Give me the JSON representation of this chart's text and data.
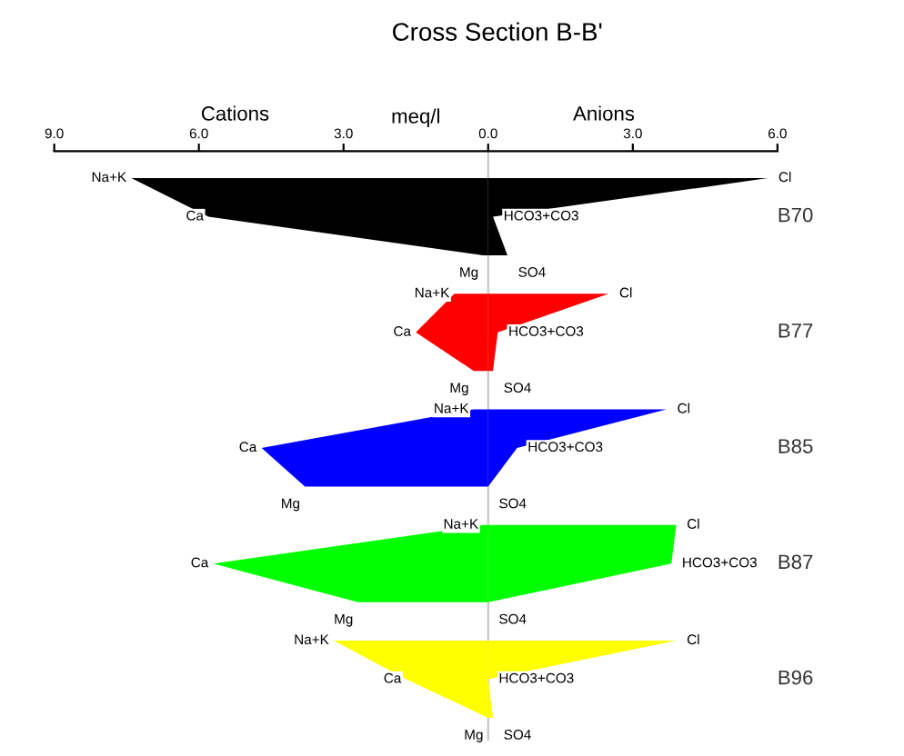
{
  "chart_data": {
    "type": "area",
    "orientation": "horizontal",
    "title": "Cross Section B-B'",
    "xlabel": "meq/l",
    "annotations": [
      "Cations",
      "Anions"
    ],
    "categories": [
      null,
      null,
      null,
      null,
      null,
      null,
      null,
      null,
      null,
      null,
      null,
      null,
      null,
      null,
      null
    ],
    "xlim": [
      -9,
      6
    ],
    "xticks": [
      {
        "value": -9,
        "label": "9.0"
      },
      {
        "value": -6,
        "label": "6.0"
      },
      {
        "value": -3,
        "label": "3.0"
      },
      {
        "value": 0,
        "label": "0.0"
      },
      {
        "value": 3,
        "label": "3.0"
      },
      {
        "value": 6,
        "label": "6.0"
      }
    ],
    "ref_lines": [
      {
        "axis": "x",
        "value": 0,
        "color": "#c8c8c8"
      }
    ],
    "series": [
      {
        "color": "#000000",
        "values": [
          -7.4,
          -5.8,
          -0.1,
          null,
          null,
          null,
          null,
          null,
          null,
          null,
          null,
          null,
          null,
          null,
          null
        ],
        "value_labels": [
          "Na+K",
          "Ca",
          "Mg",
          null,
          null,
          null,
          null,
          null,
          null,
          null,
          null,
          null,
          null,
          null,
          null
        ]
      },
      {
        "name": "B70",
        "color": "#000000",
        "values": [
          5.8,
          0.1,
          0.4,
          null,
          null,
          null,
          null,
          null,
          null,
          null,
          null,
          null,
          null,
          null,
          null
        ],
        "value_labels": [
          "Cl",
          "HCO3+CO3",
          "SO4",
          null,
          null,
          null,
          null,
          null,
          null,
          null,
          null,
          null,
          null,
          null,
          null
        ]
      },
      {
        "color": "#ff0000",
        "values": [
          null,
          null,
          null,
          -0.7,
          -1.5,
          -0.3,
          null,
          null,
          null,
          null,
          null,
          null,
          null,
          null,
          null
        ],
        "value_labels": [
          null,
          null,
          null,
          "Na+K",
          "Ca",
          "Mg",
          null,
          null,
          null,
          null,
          null,
          null,
          null,
          null,
          null
        ]
      },
      {
        "name": "B77",
        "color": "#ff0000",
        "values": [
          null,
          null,
          null,
          2.5,
          0.2,
          0.1,
          null,
          null,
          null,
          null,
          null,
          null,
          null,
          null,
          null
        ],
        "value_labels": [
          null,
          null,
          null,
          "Cl",
          "HCO3+CO3",
          "SO4",
          null,
          null,
          null,
          null,
          null,
          null,
          null,
          null,
          null
        ]
      },
      {
        "color": "#0000ff",
        "values": [
          null,
          null,
          null,
          null,
          null,
          null,
          -0.3,
          -4.7,
          -3.8,
          null,
          null,
          null,
          null,
          null,
          null
        ],
        "value_labels": [
          null,
          null,
          null,
          null,
          null,
          null,
          "Na+K",
          "Ca",
          "Mg",
          null,
          null,
          null,
          null,
          null,
          null
        ]
      },
      {
        "name": "B85",
        "color": "#0000ff",
        "values": [
          null,
          null,
          null,
          null,
          null,
          null,
          3.7,
          0.6,
          0.0,
          null,
          null,
          null,
          null,
          null,
          null
        ],
        "value_labels": [
          null,
          null,
          null,
          null,
          null,
          null,
          "Cl",
          "HCO3+CO3",
          "SO4",
          null,
          null,
          null,
          null,
          null,
          null
        ]
      },
      {
        "color": "#00ff00",
        "values": [
          null,
          null,
          null,
          null,
          null,
          null,
          null,
          null,
          null,
          -0.1,
          -5.7,
          -2.7,
          null,
          null,
          null
        ],
        "value_labels": [
          null,
          null,
          null,
          null,
          null,
          null,
          null,
          null,
          null,
          "Na+K",
          "Ca",
          "Mg",
          null,
          null,
          null
        ]
      },
      {
        "name": "B87",
        "color": "#00ff00",
        "values": [
          null,
          null,
          null,
          null,
          null,
          null,
          null,
          null,
          null,
          3.9,
          3.8,
          0.0,
          null,
          null,
          null
        ],
        "value_labels": [
          null,
          null,
          null,
          null,
          null,
          null,
          null,
          null,
          null,
          "Cl",
          "HCO3+CO3",
          "SO4",
          null,
          null,
          null
        ]
      },
      {
        "color": "#ffff00",
        "values": [
          null,
          null,
          null,
          null,
          null,
          null,
          null,
          null,
          null,
          null,
          null,
          null,
          -3.2,
          -1.7,
          0.0
        ],
        "value_labels": [
          null,
          null,
          null,
          null,
          null,
          null,
          null,
          null,
          null,
          null,
          null,
          null,
          "Na+K",
          "Ca",
          "Mg"
        ]
      },
      {
        "name": "B96",
        "color": "#ffff00",
        "values": [
          null,
          null,
          null,
          null,
          null,
          null,
          null,
          null,
          null,
          null,
          null,
          null,
          3.9,
          0.0,
          0.1
        ],
        "value_labels": [
          null,
          null,
          null,
          null,
          null,
          null,
          null,
          null,
          null,
          null,
          null,
          null,
          "Cl",
          "HCO3+CO3",
          "SO4"
        ]
      }
    ]
  }
}
